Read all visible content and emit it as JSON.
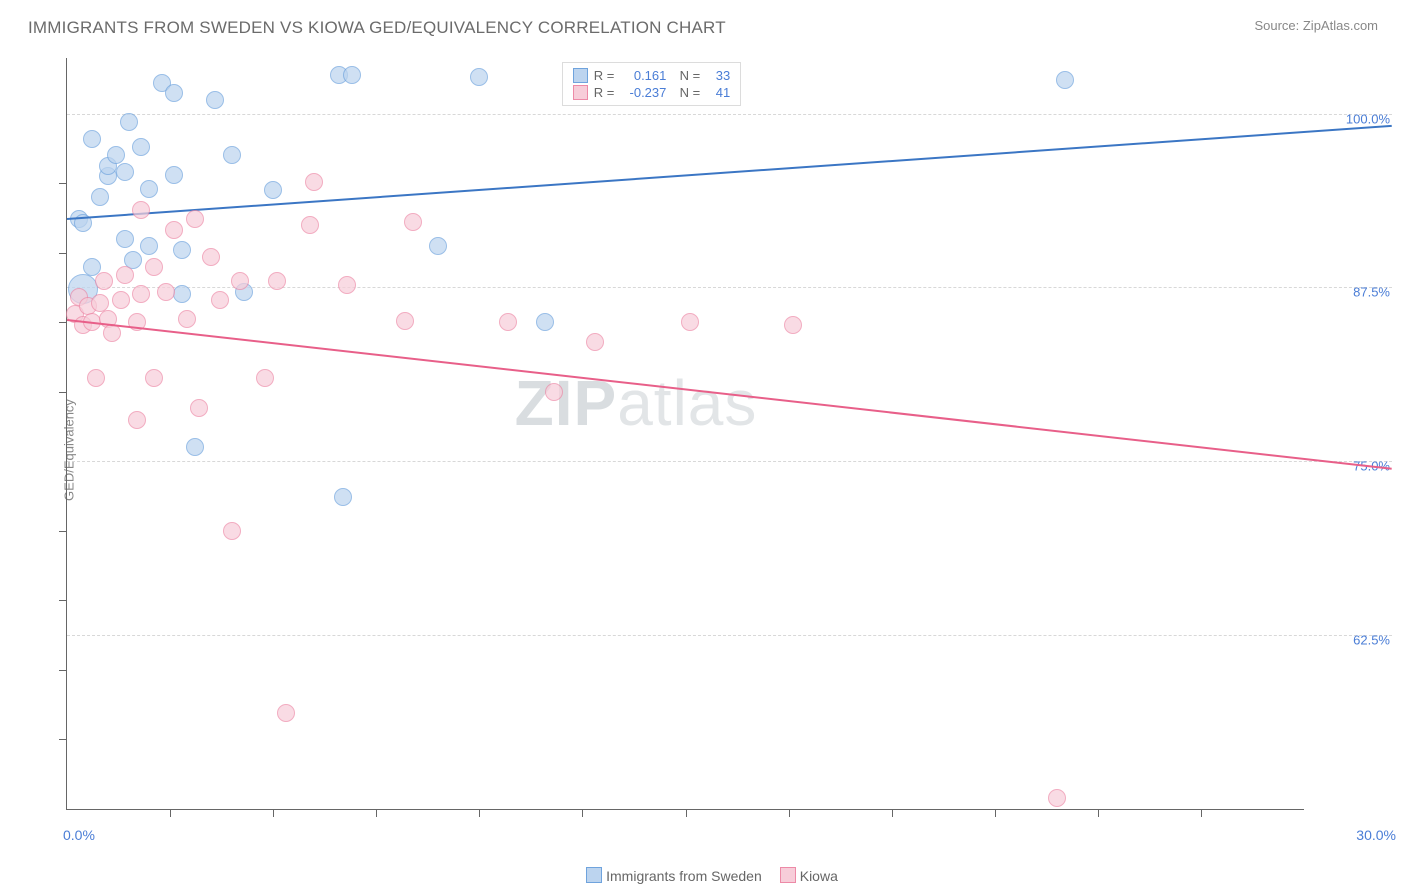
{
  "title": "IMMIGRANTS FROM SWEDEN VS KIOWA GED/EQUIVALENCY CORRELATION CHART",
  "source": "Source: ZipAtlas.com",
  "ylabel": "GED/Equivalency",
  "watermark_bold": "ZIP",
  "watermark_normal": "atlas",
  "chart": {
    "type": "scatter",
    "x_range": [
      0,
      30
    ],
    "y_range": [
      50,
      104
    ],
    "x_min_label": "0.0%",
    "x_max_label": "30.0%",
    "y_gridlines": [
      {
        "v": 62.5,
        "label": "62.5%"
      },
      {
        "v": 75.0,
        "label": "75.0%"
      },
      {
        "v": 87.5,
        "label": "87.5%"
      },
      {
        "v": 100.0,
        "label": "100.0%"
      }
    ],
    "x_ticks": [
      2.5,
      5,
      7.5,
      10,
      12.5,
      15,
      17.5,
      20,
      22.5,
      25,
      27.5
    ],
    "y_ticks": [
      55,
      60,
      65,
      70,
      80,
      85,
      90,
      95
    ],
    "series": [
      {
        "name": "Immigrants from Sweden",
        "fill": "#bcd4ef",
        "stroke": "#6fa3dd",
        "trend_color": "#3b76c4",
        "trend": {
          "x1": 0,
          "y1": 92.5,
          "x2": 30,
          "y2": 99.2
        },
        "R": "0.161",
        "N": "33",
        "marker_radius": 8,
        "points": [
          {
            "x": 0.3,
            "y": 92.4
          },
          {
            "x": 0.4,
            "y": 92.1
          },
          {
            "x": 0.4,
            "y": 87.4,
            "r": 14
          },
          {
            "x": 0.6,
            "y": 89.0
          },
          {
            "x": 0.6,
            "y": 98.2
          },
          {
            "x": 0.8,
            "y": 94.0
          },
          {
            "x": 1.0,
            "y": 95.5
          },
          {
            "x": 1.0,
            "y": 96.2
          },
          {
            "x": 1.2,
            "y": 97.0
          },
          {
            "x": 1.4,
            "y": 91.0
          },
          {
            "x": 1.4,
            "y": 95.8
          },
          {
            "x": 1.5,
            "y": 99.4
          },
          {
            "x": 1.6,
            "y": 89.5
          },
          {
            "x": 1.8,
            "y": 97.6
          },
          {
            "x": 2.0,
            "y": 90.5
          },
          {
            "x": 2.0,
            "y": 94.6
          },
          {
            "x": 2.3,
            "y": 102.2
          },
          {
            "x": 2.6,
            "y": 95.6
          },
          {
            "x": 2.6,
            "y": 101.5
          },
          {
            "x": 2.8,
            "y": 87.0
          },
          {
            "x": 2.8,
            "y": 90.2
          },
          {
            "x": 3.1,
            "y": 76.0
          },
          {
            "x": 3.6,
            "y": 101.0
          },
          {
            "x": 4.0,
            "y": 97.0
          },
          {
            "x": 4.3,
            "y": 87.2
          },
          {
            "x": 5.0,
            "y": 94.5
          },
          {
            "x": 6.6,
            "y": 102.8
          },
          {
            "x": 6.7,
            "y": 72.4
          },
          {
            "x": 6.9,
            "y": 102.8
          },
          {
            "x": 9.0,
            "y": 90.5
          },
          {
            "x": 10.0,
            "y": 102.6
          },
          {
            "x": 11.6,
            "y": 85.0
          },
          {
            "x": 24.2,
            "y": 102.4
          }
        ]
      },
      {
        "name": "Kiowa",
        "fill": "#f7cdd9",
        "stroke": "#ed8aa7",
        "trend_color": "#e85f89",
        "trend": {
          "x1": 0,
          "y1": 85.2,
          "x2": 30,
          "y2": 74.5
        },
        "R": "-0.237",
        "N": "41",
        "marker_radius": 8,
        "points": [
          {
            "x": 0.2,
            "y": 85.6
          },
          {
            "x": 0.3,
            "y": 86.8
          },
          {
            "x": 0.4,
            "y": 84.8
          },
          {
            "x": 0.5,
            "y": 86.2
          },
          {
            "x": 0.6,
            "y": 85.0
          },
          {
            "x": 0.7,
            "y": 81.0
          },
          {
            "x": 0.8,
            "y": 86.4
          },
          {
            "x": 0.9,
            "y": 88.0
          },
          {
            "x": 1.0,
            "y": 85.2
          },
          {
            "x": 1.1,
            "y": 84.2
          },
          {
            "x": 1.3,
            "y": 86.6
          },
          {
            "x": 1.4,
            "y": 88.4
          },
          {
            "x": 1.7,
            "y": 78.0
          },
          {
            "x": 1.7,
            "y": 85.0
          },
          {
            "x": 1.8,
            "y": 87.0
          },
          {
            "x": 1.8,
            "y": 93.1
          },
          {
            "x": 2.1,
            "y": 81.0
          },
          {
            "x": 2.1,
            "y": 89.0
          },
          {
            "x": 2.4,
            "y": 87.2
          },
          {
            "x": 2.6,
            "y": 91.6
          },
          {
            "x": 2.9,
            "y": 85.2
          },
          {
            "x": 3.1,
            "y": 92.4
          },
          {
            "x": 3.2,
            "y": 78.8
          },
          {
            "x": 3.5,
            "y": 89.7
          },
          {
            "x": 3.7,
            "y": 86.6
          },
          {
            "x": 4.0,
            "y": 70.0
          },
          {
            "x": 4.2,
            "y": 88.0
          },
          {
            "x": 4.8,
            "y": 81.0
          },
          {
            "x": 5.1,
            "y": 88.0
          },
          {
            "x": 5.3,
            "y": 56.9
          },
          {
            "x": 5.9,
            "y": 92.0
          },
          {
            "x": 6.0,
            "y": 95.1
          },
          {
            "x": 6.8,
            "y": 87.7
          },
          {
            "x": 8.2,
            "y": 85.1
          },
          {
            "x": 8.4,
            "y": 92.2
          },
          {
            "x": 10.7,
            "y": 85.0
          },
          {
            "x": 11.8,
            "y": 80.0
          },
          {
            "x": 12.8,
            "y": 83.6
          },
          {
            "x": 15.1,
            "y": 85.0
          },
          {
            "x": 17.6,
            "y": 84.8
          },
          {
            "x": 24.0,
            "y": 50.8
          }
        ]
      }
    ]
  },
  "legend": {
    "items": [
      {
        "label": "Immigrants from Sweden",
        "fill": "#bcd4ef",
        "stroke": "#6fa3dd"
      },
      {
        "label": "Kiowa",
        "fill": "#f7cdd9",
        "stroke": "#ed8aa7"
      }
    ]
  }
}
